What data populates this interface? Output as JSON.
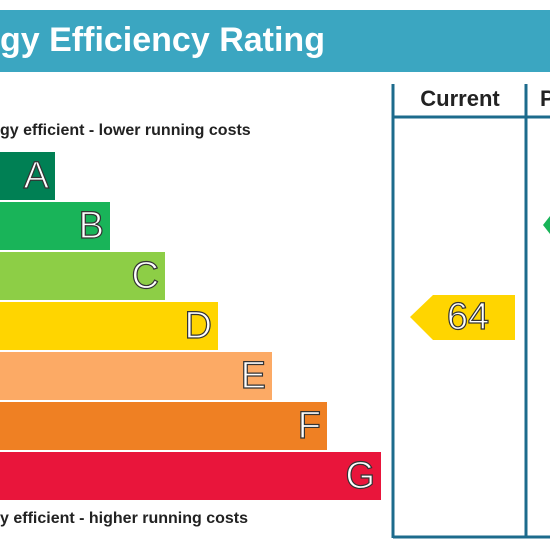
{
  "title": "gy Efficiency Rating",
  "columns": {
    "current": "Current",
    "potential": "P"
  },
  "top_note": "gy efficient - lower running costs",
  "bottom_note": "y efficient - higher running costs",
  "bands": [
    {
      "letter": "A",
      "color": "#008054"
    },
    {
      "letter": "B",
      "color": "#19b459"
    },
    {
      "letter": "C",
      "color": "#8dce46"
    },
    {
      "letter": "D",
      "color": "#ffd500"
    },
    {
      "letter": "E",
      "color": "#fcaa65"
    },
    {
      "letter": "F",
      "color": "#ef8023"
    },
    {
      "letter": "G",
      "color": "#e9153b"
    }
  ],
  "current_rating": "64"
}
